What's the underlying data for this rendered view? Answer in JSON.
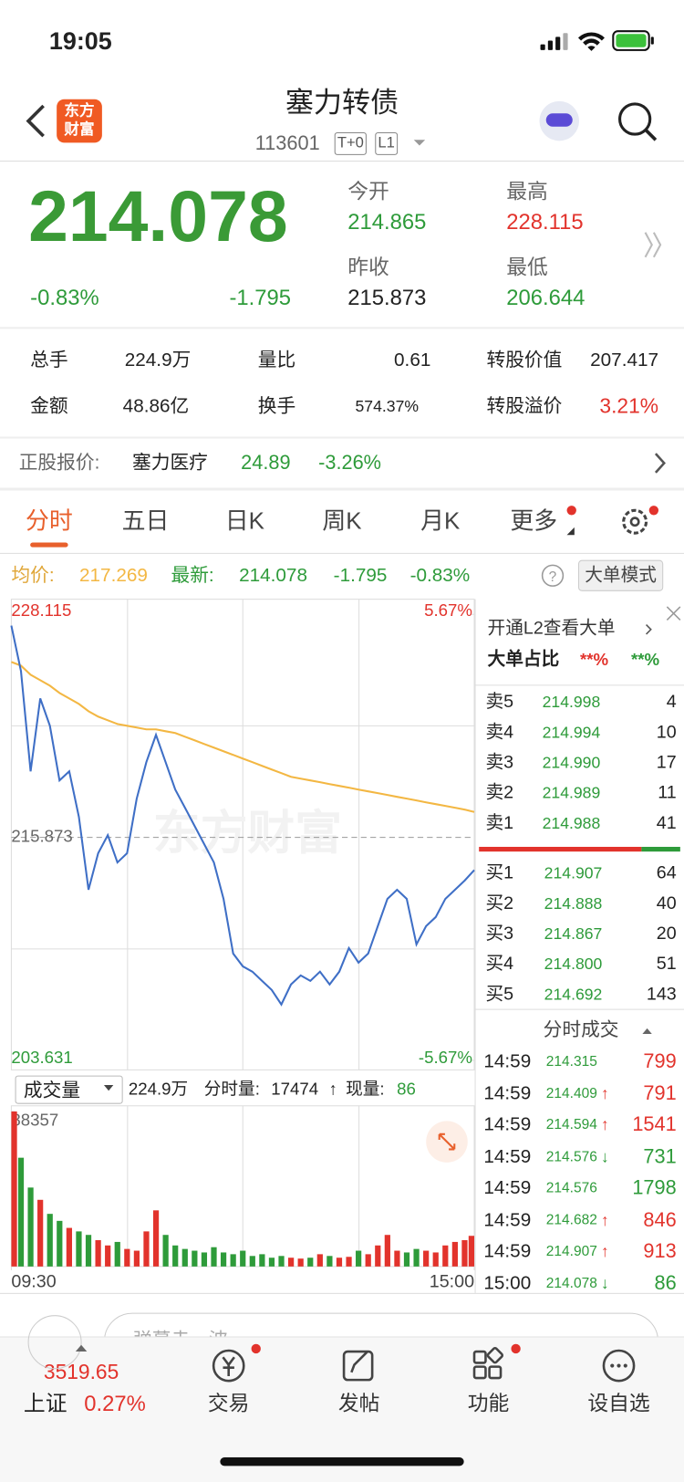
{
  "status_bar": {
    "time": "19:05"
  },
  "header": {
    "logo": [
      "东方",
      "财富"
    ],
    "title": "塞力转债",
    "code": "113601",
    "badges": [
      "T+0",
      "L1"
    ]
  },
  "quote": {
    "price": "214.078",
    "change_pct": "-0.83%",
    "change": "-1.795",
    "fields": [
      {
        "label": "今开",
        "value": "214.865"
      },
      {
        "label": "最高",
        "value": "228.115"
      },
      {
        "label": "昨收",
        "value": "215.873"
      },
      {
        "label": "最低",
        "value": "206.644"
      }
    ]
  },
  "stats": [
    [
      {
        "label": "总手",
        "value": "224.9万"
      },
      {
        "label": "量比",
        "value": "0.61"
      },
      {
        "label": "转股价值",
        "value": "207.417"
      }
    ],
    [
      {
        "label": "金额",
        "value": "48.86亿"
      },
      {
        "label": "换手",
        "value": "574.37%"
      },
      {
        "label": "转股溢价",
        "value": "3.21%"
      }
    ]
  ],
  "stock_quote": {
    "label": "正股报价:",
    "name": "塞力医疗",
    "price": "24.89",
    "change": "-3.26%"
  },
  "tabs": [
    "分时",
    "五日",
    "日K",
    "周K",
    "月K",
    "更多"
  ],
  "info_line": {
    "avg_label": "均价:",
    "avg": "217.269",
    "latest_label": "最新:",
    "latest": "214.078",
    "change": "-1.795",
    "pct": "-0.83%",
    "mode": "大单模式"
  },
  "watermark": "东方财富",
  "volume_header": {
    "label": "成交量",
    "total": "224.9万",
    "minute_label": "分时量:",
    "minute_value": "17474",
    "arrow": "↑",
    "now_label": "现量:",
    "now": "86"
  },
  "order_book": {
    "l2": "开通L2查看大单",
    "ratio_label": "大单占比",
    "ratio_a": "**%",
    "ratio_b": "**%",
    "asks": [
      {
        "label": "卖5",
        "price": "214.998",
        "volume": "4"
      },
      {
        "label": "卖4",
        "price": "214.994",
        "volume": "10"
      },
      {
        "label": "卖3",
        "price": "214.990",
        "volume": "17"
      },
      {
        "label": "卖2",
        "price": "214.989",
        "volume": "11"
      },
      {
        "label": "卖1",
        "price": "214.988",
        "volume": "41"
      }
    ],
    "bids": [
      {
        "label": "买1",
        "price": "214.907",
        "volume": "64"
      },
      {
        "label": "买2",
        "price": "214.888",
        "volume": "40"
      },
      {
        "label": "买3",
        "price": "214.867",
        "volume": "20"
      },
      {
        "label": "买4",
        "price": "214.800",
        "volume": "51"
      },
      {
        "label": "买5",
        "price": "214.692",
        "volume": "143"
      }
    ]
  },
  "trades": {
    "title": "分时成交",
    "rows": [
      {
        "time": "14:59",
        "price": "214.315",
        "volume": "799",
        "color": "#e2332c"
      },
      {
        "time": "14:59",
        "price": "214.409",
        "dir": "↑",
        "volume": "791",
        "color": "#e2332c"
      },
      {
        "time": "14:59",
        "price": "214.594",
        "dir": "↑",
        "volume": "1541",
        "color": "#e2332c"
      },
      {
        "time": "14:59",
        "price": "214.576",
        "dir": "↓",
        "volume": "731",
        "color": "#2e9b3a"
      },
      {
        "time": "14:59",
        "price": "214.576",
        "volume": "1798",
        "color": "#2e9b3a"
      },
      {
        "time": "14:59",
        "price": "214.682",
        "dir": "↑",
        "volume": "846",
        "color": "#e2332c"
      },
      {
        "time": "14:59",
        "price": "214.907",
        "dir": "↑",
        "volume": "913",
        "color": "#e2332c"
      },
      {
        "time": "15:00",
        "price": "214.078",
        "dir": "↓",
        "volume": "86",
        "color": "#2e9b3a"
      }
    ]
  },
  "comment_placeholder": "弹幕走一波",
  "bottom_bar": {
    "index_value": "3519.65",
    "index_name": "上证",
    "index_pct": "0.27%",
    "tabs": [
      "交易",
      "发帖",
      "功能",
      "设自选"
    ]
  },
  "chart_data": [
    {
      "type": "line",
      "up_color": "#e2332c",
      "down_color": "#2e9b3a",
      "x": [
        0,
        5,
        10,
        15,
        20,
        25,
        30,
        35,
        40,
        45,
        50,
        55,
        60,
        65,
        70,
        75,
        80,
        85,
        90,
        95,
        100,
        105,
        110,
        115,
        120,
        125,
        130,
        135,
        140,
        145,
        150,
        155,
        160,
        165,
        170,
        175,
        180,
        185,
        190,
        195,
        200,
        205,
        210,
        215,
        220,
        225,
        230,
        235,
        240
      ],
      "xlim": [
        0,
        240
      ],
      "ylim": [
        203.631,
        228.115
      ],
      "yticks": [
        228.115,
        215.873,
        203.631
      ],
      "y2lim": [
        -5.67,
        5.67
      ],
      "y2ticks": [
        {
          "value": 5.67,
          "label": "5.67%"
        },
        {
          "value": -5.67,
          "label": "-5.67%"
        }
      ],
      "series": [
        {
          "name": "最新",
          "color": "#3f6fc6",
          "values": [
            227.5,
            225,
            219.5,
            223.5,
            222,
            219,
            219.5,
            217,
            213,
            215,
            216,
            214.5,
            215,
            218,
            220,
            221.5,
            220,
            218.5,
            217.5,
            216.5,
            215.5,
            214.5,
            212.5,
            209.5,
            208.8,
            208.5,
            208,
            207.5,
            206.7,
            207.8,
            208.3,
            208,
            208.5,
            207.8,
            208.5,
            209.8,
            209,
            209.5,
            211,
            212.5,
            213,
            212.5,
            210,
            211,
            211.5,
            212.5,
            213,
            213.5,
            214.078
          ]
        },
        {
          "name": "均价",
          "color": "#f3b743",
          "values": [
            225.5,
            225.3,
            224.8,
            224.5,
            224.2,
            223.8,
            223.5,
            223.2,
            222.8,
            222.5,
            222.3,
            222.1,
            222,
            221.9,
            221.8,
            221.8,
            221.7,
            221.6,
            221.4,
            221.2,
            221,
            220.8,
            220.6,
            220.4,
            220.2,
            220,
            219.8,
            219.6,
            219.4,
            219.2,
            219.1,
            219,
            218.9,
            218.8,
            218.7,
            218.6,
            218.5,
            218.4,
            218.3,
            218.2,
            218.1,
            218,
            217.9,
            217.8,
            217.7,
            217.6,
            217.5,
            217.4,
            217.269
          ]
        }
      ]
    },
    {
      "type": "bar",
      "up_color": "#e2332c",
      "down_color": "#2e9b3a",
      "x": [
        0,
        5,
        10,
        15,
        20,
        25,
        30,
        35,
        40,
        45,
        50,
        55,
        60,
        65,
        70,
        75,
        80,
        85,
        90,
        95,
        100,
        105,
        110,
        115,
        120,
        125,
        130,
        135,
        140,
        145,
        150,
        155,
        160,
        165,
        170,
        175,
        180,
        185,
        190,
        195,
        200,
        205,
        210,
        215,
        220,
        225,
        230,
        235,
        240
      ],
      "xlim": [
        0,
        240
      ],
      "xticks": [
        {
          "value": 0,
          "label": "09:30"
        },
        {
          "value": 240,
          "label": "15:00"
        }
      ],
      "ylim": [
        0,
        88357
      ],
      "yticks": [
        88357
      ],
      "values": [
        88357,
        62000,
        45000,
        38000,
        30000,
        26000,
        22000,
        20000,
        18000,
        15000,
        12000,
        14000,
        10000,
        9000,
        20000,
        32000,
        18000,
        12000,
        10000,
        9000,
        8000,
        11000,
        8000,
        7000,
        9000,
        6000,
        7000,
        5000,
        6000,
        5000,
        4500,
        5000,
        7000,
        6000,
        5000,
        5500,
        9000,
        7000,
        12000,
        18000,
        9000,
        8000,
        10000,
        9000,
        8000,
        12000,
        14000,
        15000,
        17474
      ]
    }
  ]
}
